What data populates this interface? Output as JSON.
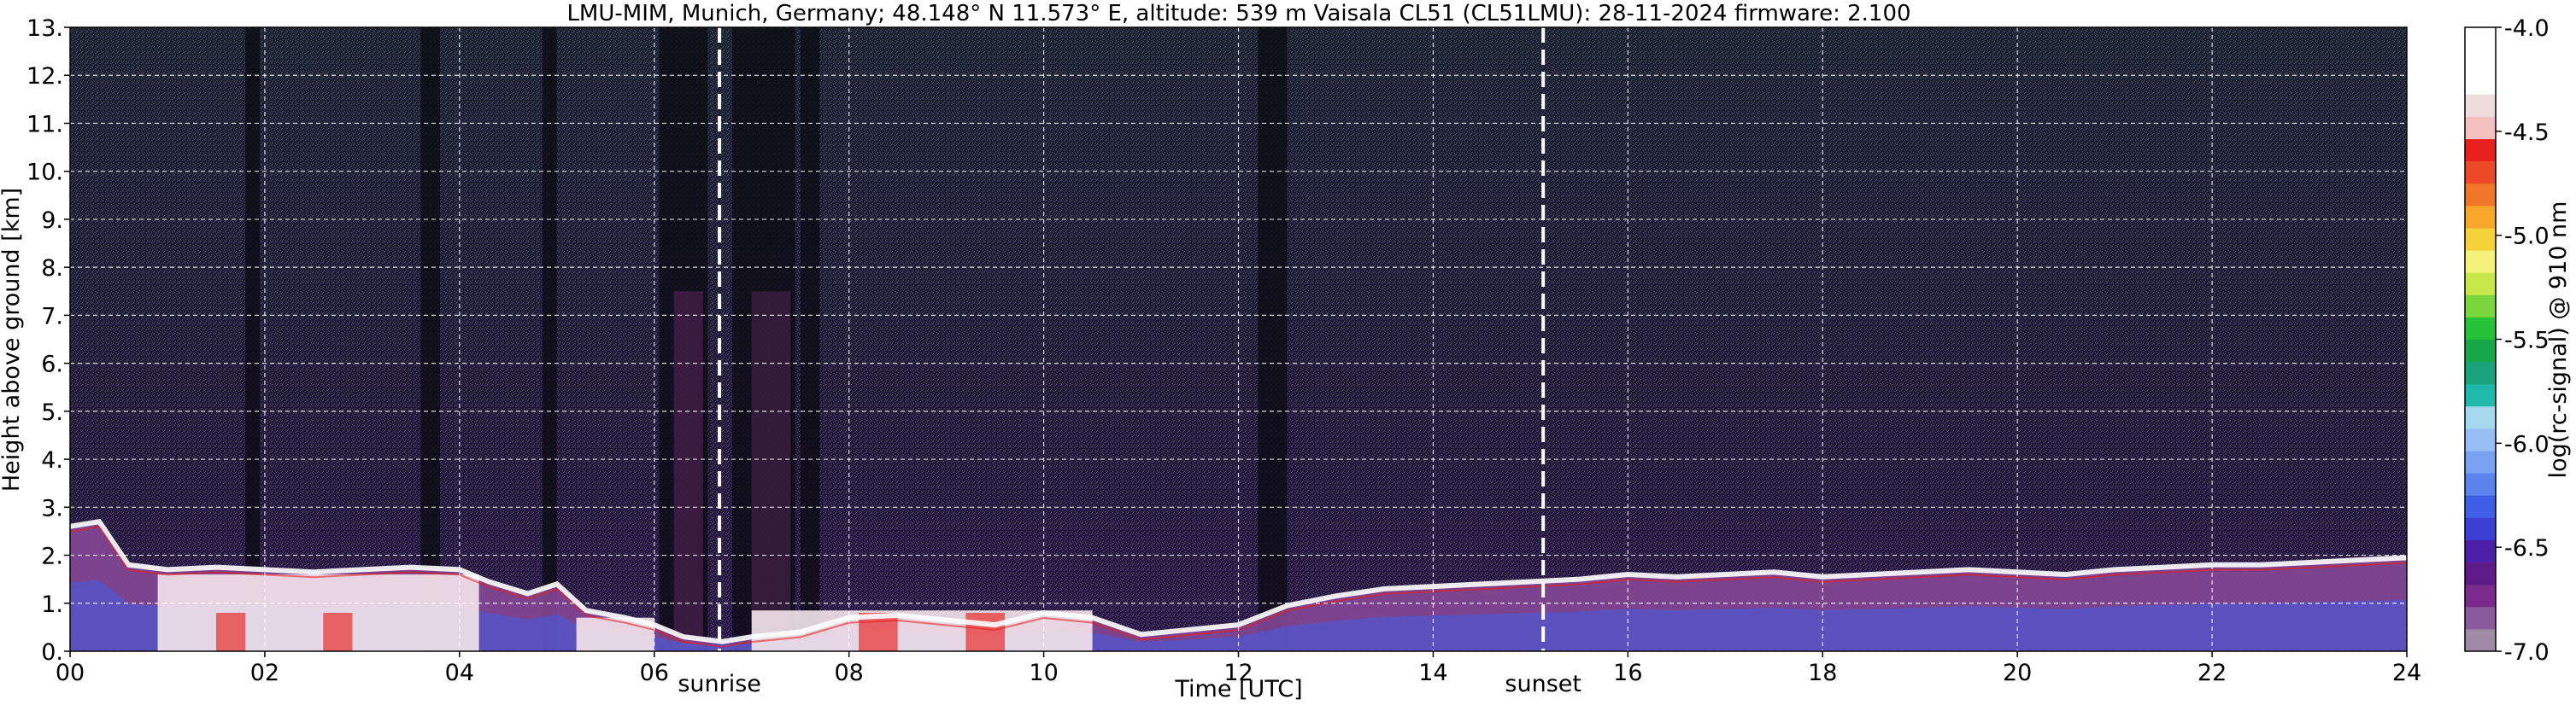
{
  "chart_data": {
    "type": "heatmap",
    "title": "LMU-MIM, Munich, Germany; 48.148° N 11.573° E, altitude: 539 m    Vaisala CL51 (CL51LMU): 28-11-2024    firmware: 2.100",
    "xlabel": "Time [UTC]",
    "ylabel": "Height above ground [km]",
    "xlim": [
      0,
      24
    ],
    "ylim": [
      0,
      13
    ],
    "x_ticks": [
      0,
      2,
      4,
      6,
      8,
      10,
      12,
      14,
      16,
      18,
      20,
      22,
      24
    ],
    "x_tick_labels": [
      "00",
      "02",
      "04",
      "06",
      "08",
      "10",
      "12",
      "14",
      "16",
      "18",
      "20",
      "22",
      "24"
    ],
    "y_ticks": [
      0,
      1,
      2,
      3,
      4,
      5,
      6,
      7,
      8,
      9,
      10,
      11,
      12,
      13
    ],
    "y_tick_labels": [
      "0.",
      "1.",
      "2.",
      "3.",
      "4.",
      "5.",
      "6.",
      "7.",
      "8.",
      "9.",
      "10.",
      "11.",
      "12.",
      "13."
    ],
    "grid": true,
    "annotations": [
      {
        "label": "sunrise",
        "x": 6.67
      },
      {
        "label": "sunset",
        "x": 15.13
      }
    ],
    "colorbar": {
      "label": "log(rc-signal) @ 910 nm",
      "range": [
        -7.0,
        -4.0
      ],
      "ticks": [
        -7.0,
        -6.5,
        -6.0,
        -5.5,
        -5.0,
        -4.5,
        -4.0
      ],
      "tick_labels": [
        "-7.0",
        "-6.5",
        "-6.0",
        "-5.5",
        "-5.0",
        "-4.5",
        "-4.0"
      ],
      "colors": [
        "#a08aa6",
        "#8a5a9a",
        "#7a2a8c",
        "#5e1a86",
        "#4b1fa8",
        "#3b3fd6",
        "#3f5fe8",
        "#5d84ee",
        "#7aa2f2",
        "#97bff5",
        "#a6d8f0",
        "#20b8a8",
        "#1aa27a",
        "#17a84a",
        "#26c23a",
        "#7ad63a",
        "#c8e84a",
        "#f5f07a",
        "#f6d23a",
        "#f6a62a",
        "#f2762a",
        "#ec4a2a",
        "#e8201e",
        "#f4c0c0",
        "#efdcdc",
        "#ffffff",
        "#ffffff",
        "#ffffff"
      ]
    },
    "cloud_base_km": [
      [
        0.0,
        2.6
      ],
      [
        0.3,
        2.7
      ],
      [
        0.6,
        1.8
      ],
      [
        1.0,
        1.7
      ],
      [
        1.5,
        1.75
      ],
      [
        2.0,
        1.7
      ],
      [
        2.5,
        1.65
      ],
      [
        3.0,
        1.7
      ],
      [
        3.5,
        1.75
      ],
      [
        4.0,
        1.7
      ],
      [
        4.3,
        1.45
      ],
      [
        4.7,
        1.2
      ],
      [
        5.0,
        1.4
      ],
      [
        5.3,
        0.85
      ],
      [
        5.7,
        0.7
      ],
      [
        6.0,
        0.55
      ],
      [
        6.3,
        0.3
      ],
      [
        6.7,
        0.2
      ],
      [
        7.0,
        0.3
      ],
      [
        7.5,
        0.4
      ],
      [
        8.0,
        0.7
      ],
      [
        8.5,
        0.75
      ],
      [
        9.0,
        0.65
      ],
      [
        9.5,
        0.55
      ],
      [
        10.0,
        0.8
      ],
      [
        10.5,
        0.7
      ],
      [
        11.0,
        0.35
      ],
      [
        11.5,
        0.45
      ],
      [
        12.0,
        0.55
      ],
      [
        12.5,
        0.95
      ],
      [
        13.0,
        1.15
      ],
      [
        13.5,
        1.3
      ],
      [
        14.0,
        1.35
      ],
      [
        14.5,
        1.4
      ],
      [
        15.0,
        1.45
      ],
      [
        15.5,
        1.5
      ],
      [
        16.0,
        1.6
      ],
      [
        16.5,
        1.55
      ],
      [
        17.0,
        1.6
      ],
      [
        17.5,
        1.65
      ],
      [
        18.0,
        1.55
      ],
      [
        18.5,
        1.6
      ],
      [
        19.0,
        1.65
      ],
      [
        19.5,
        1.7
      ],
      [
        20.0,
        1.65
      ],
      [
        20.5,
        1.6
      ],
      [
        21.0,
        1.7
      ],
      [
        21.5,
        1.75
      ],
      [
        22.0,
        1.8
      ],
      [
        22.5,
        1.8
      ],
      [
        23.0,
        1.85
      ],
      [
        23.5,
        1.9
      ],
      [
        24.0,
        1.95
      ]
    ]
  }
}
